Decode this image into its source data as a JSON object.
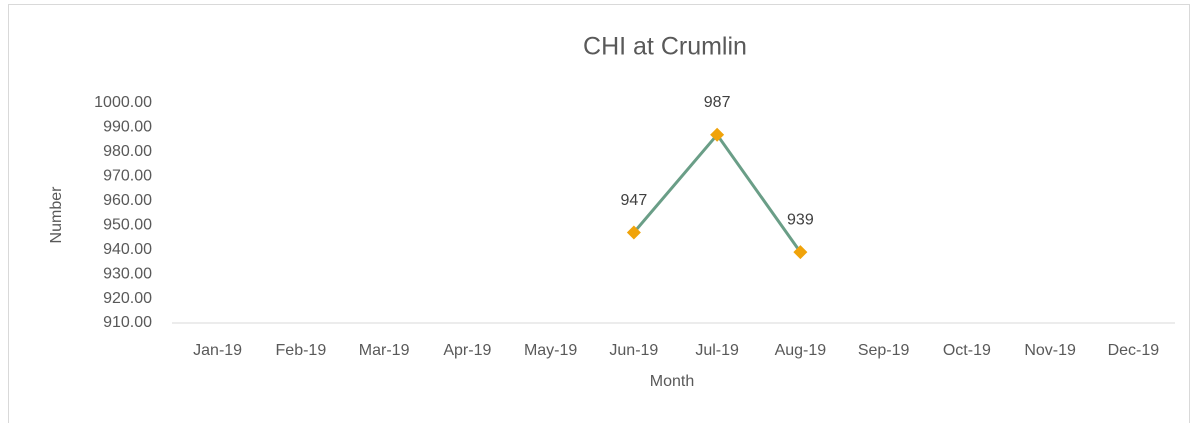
{
  "chart_data": {
    "type": "line",
    "title": "CHI at Crumlin",
    "x_label": "Month",
    "y_label": "Number",
    "categories": [
      "Jan-19",
      "Feb-19",
      "Mar-19",
      "Apr-19",
      "May-19",
      "Jun-19",
      "Jul-19",
      "Aug-19",
      "Sep-19",
      "Oct-19",
      "Nov-19",
      "Dec-19"
    ],
    "values": [
      null,
      null,
      null,
      null,
      null,
      947,
      987,
      939,
      null,
      null,
      null,
      null
    ],
    "color": "#6a9e87",
    "marker_color": "#f0a30a",
    "ylim": [
      910,
      1000
    ],
    "yticks": [
      {
        "value": 910,
        "label": "910.00"
      },
      {
        "value": 920,
        "label": "920.00"
      },
      {
        "value": 930,
        "label": "930.00"
      },
      {
        "value": 940,
        "label": "940.00"
      },
      {
        "value": 950,
        "label": "950.00"
      },
      {
        "value": 960,
        "label": "960.00"
      },
      {
        "value": 970,
        "label": "970.00"
      },
      {
        "value": 980,
        "label": "980.00"
      },
      {
        "value": 990,
        "label": "990.00"
      },
      {
        "value": 1000,
        "label": "1000.00"
      }
    ],
    "grid": false
  }
}
